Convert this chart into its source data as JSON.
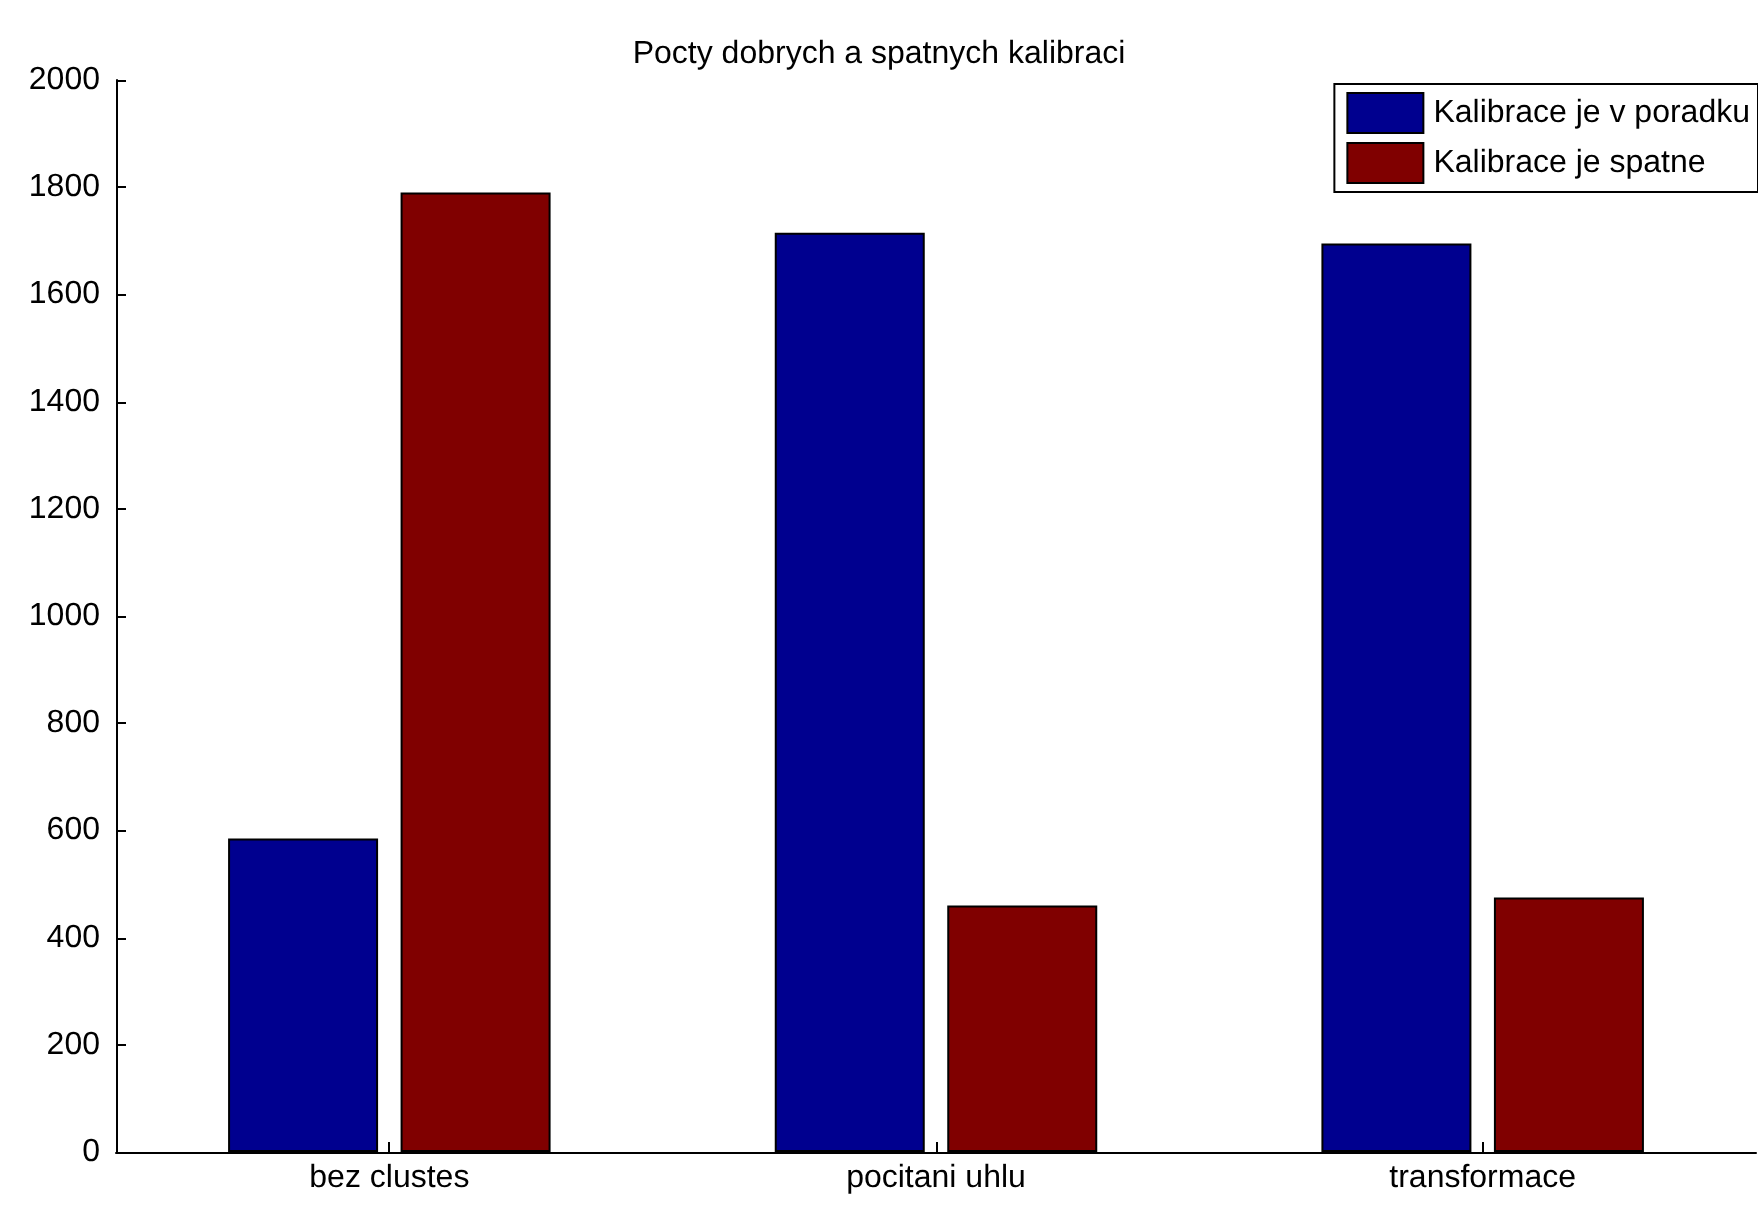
{
  "chart_data": {
    "type": "bar",
    "title": "Pocty dobrych a spatnych kalibraci",
    "categories": [
      "bez clustes",
      "pocitani uhlu",
      "transformace"
    ],
    "series": [
      {
        "name": "Kalibrace je v poradku",
        "color": "#00008f",
        "values": [
          585,
          1715,
          1695
        ]
      },
      {
        "name": "Kalibrace je spatne",
        "color": "#800000",
        "values": [
          1790,
          460,
          475
        ]
      }
    ],
    "ylim": [
      0,
      2000
    ],
    "yticks": [
      0,
      200,
      400,
      600,
      800,
      1000,
      1200,
      1400,
      1600,
      1800,
      2000
    ],
    "grid": false,
    "legend": "top right"
  }
}
